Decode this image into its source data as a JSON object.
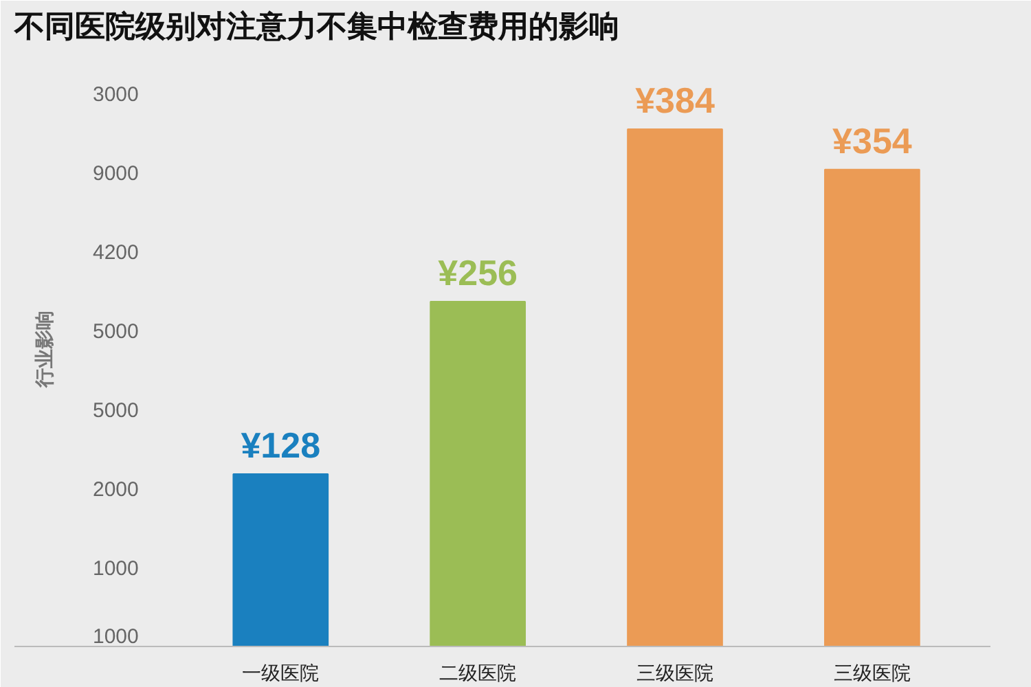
{
  "chart_data": {
    "type": "bar",
    "title": "不同医院级别对注意力不集中检查费用的影响",
    "ylabel": "行业影响",
    "categories": [
      "一级医院",
      "二级医院",
      "三级医院",
      "三级医院"
    ],
    "values": [
      128,
      256,
      384,
      354
    ],
    "colors": [
      "#1a80bf",
      "#9bbd55",
      "#eb9b55",
      "#eb9b55"
    ],
    "value_labels": [
      "¥128",
      "¥256",
      "¥384",
      "¥354"
    ],
    "annotations": [
      "3000",
      "9000",
      "4200",
      "5000",
      "5000",
      "2000",
      "1000",
      "1000"
    ],
    "grid": false
  }
}
